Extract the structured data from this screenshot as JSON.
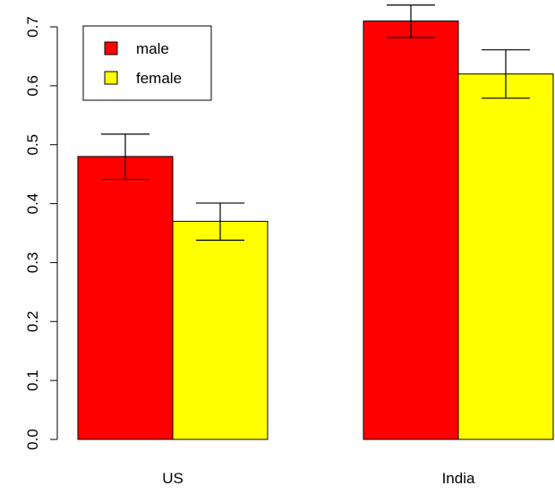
{
  "chart_data": {
    "type": "bar",
    "categories": [
      "US",
      "India"
    ],
    "series": [
      {
        "name": "male",
        "color": "#FF0000",
        "values": [
          0.48,
          0.71
        ],
        "err_low": [
          0.441,
          0.682
        ],
        "err_high": [
          0.518,
          0.737
        ]
      },
      {
        "name": "female",
        "color": "#FFFF00",
        "values": [
          0.37,
          0.62
        ],
        "err_low": [
          0.338,
          0.579
        ],
        "err_high": [
          0.401,
          0.661
        ]
      }
    ],
    "yticks": [
      "0.0",
      "0.1",
      "0.2",
      "0.3",
      "0.4",
      "0.5",
      "0.6",
      "0.7"
    ],
    "ylim": [
      0,
      0.7
    ],
    "legend": {
      "position": "top-left"
    },
    "grid": false
  }
}
